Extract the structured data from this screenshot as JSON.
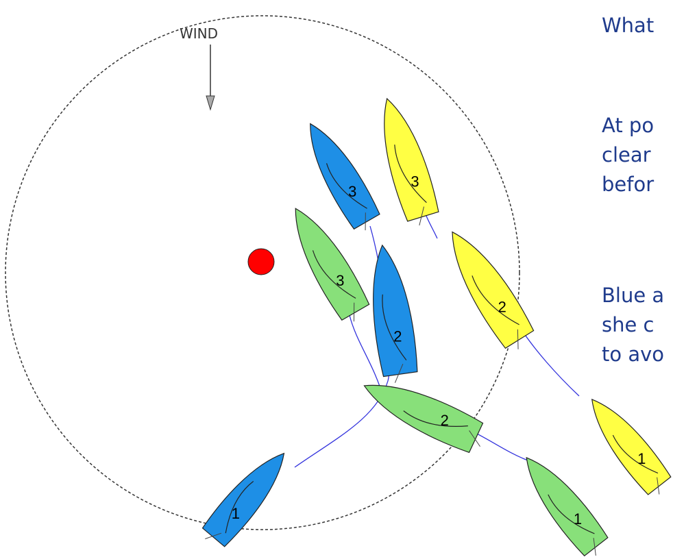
{
  "diagram": {
    "wind_label": "WIND",
    "colors": {
      "blue": "#1e8fe6",
      "yellow": "#ffff44",
      "green": "#88e07a",
      "mark": "#ff0000",
      "track": "#3333dd"
    },
    "boats": [
      {
        "color": "blue",
        "label": "1"
      },
      {
        "color": "blue",
        "label": "2"
      },
      {
        "color": "blue",
        "label": "3"
      },
      {
        "color": "green",
        "label": "1"
      },
      {
        "color": "green",
        "label": "2"
      },
      {
        "color": "green",
        "label": "3"
      },
      {
        "color": "yellow",
        "label": "1"
      },
      {
        "color": "yellow",
        "label": "2"
      },
      {
        "color": "yellow",
        "label": "3"
      }
    ]
  },
  "text_panel": {
    "line1": "What",
    "line2": "At po",
    "line3": "clear",
    "line4": "befor",
    "line5": "Blue a",
    "line6": "she c",
    "line7": "to avo"
  }
}
